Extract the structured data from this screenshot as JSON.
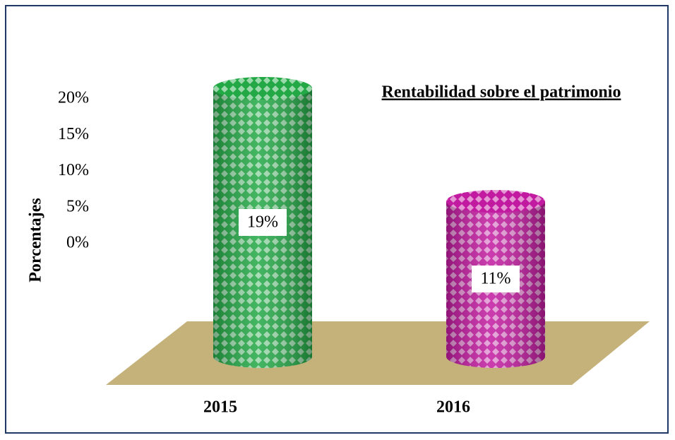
{
  "chart_data": {
    "type": "bar3d",
    "title": "Rentabilidad sobre el patrimonio",
    "ylabel": "Porcentajes",
    "categories": [
      "2015",
      "2016"
    ],
    "values": [
      19,
      11
    ],
    "value_labels": [
      "19%",
      "11%"
    ],
    "colors": [
      "#22a845",
      "#c21aa0"
    ],
    "ylim": [
      0,
      20
    ],
    "yticks": [
      {
        "value": 0,
        "label": "0%"
      },
      {
        "value": 5,
        "label": "5%"
      },
      {
        "value": 10,
        "label": "10%"
      },
      {
        "value": 15,
        "label": "15%"
      },
      {
        "value": 20,
        "label": "20%"
      }
    ],
    "grid": false
  }
}
